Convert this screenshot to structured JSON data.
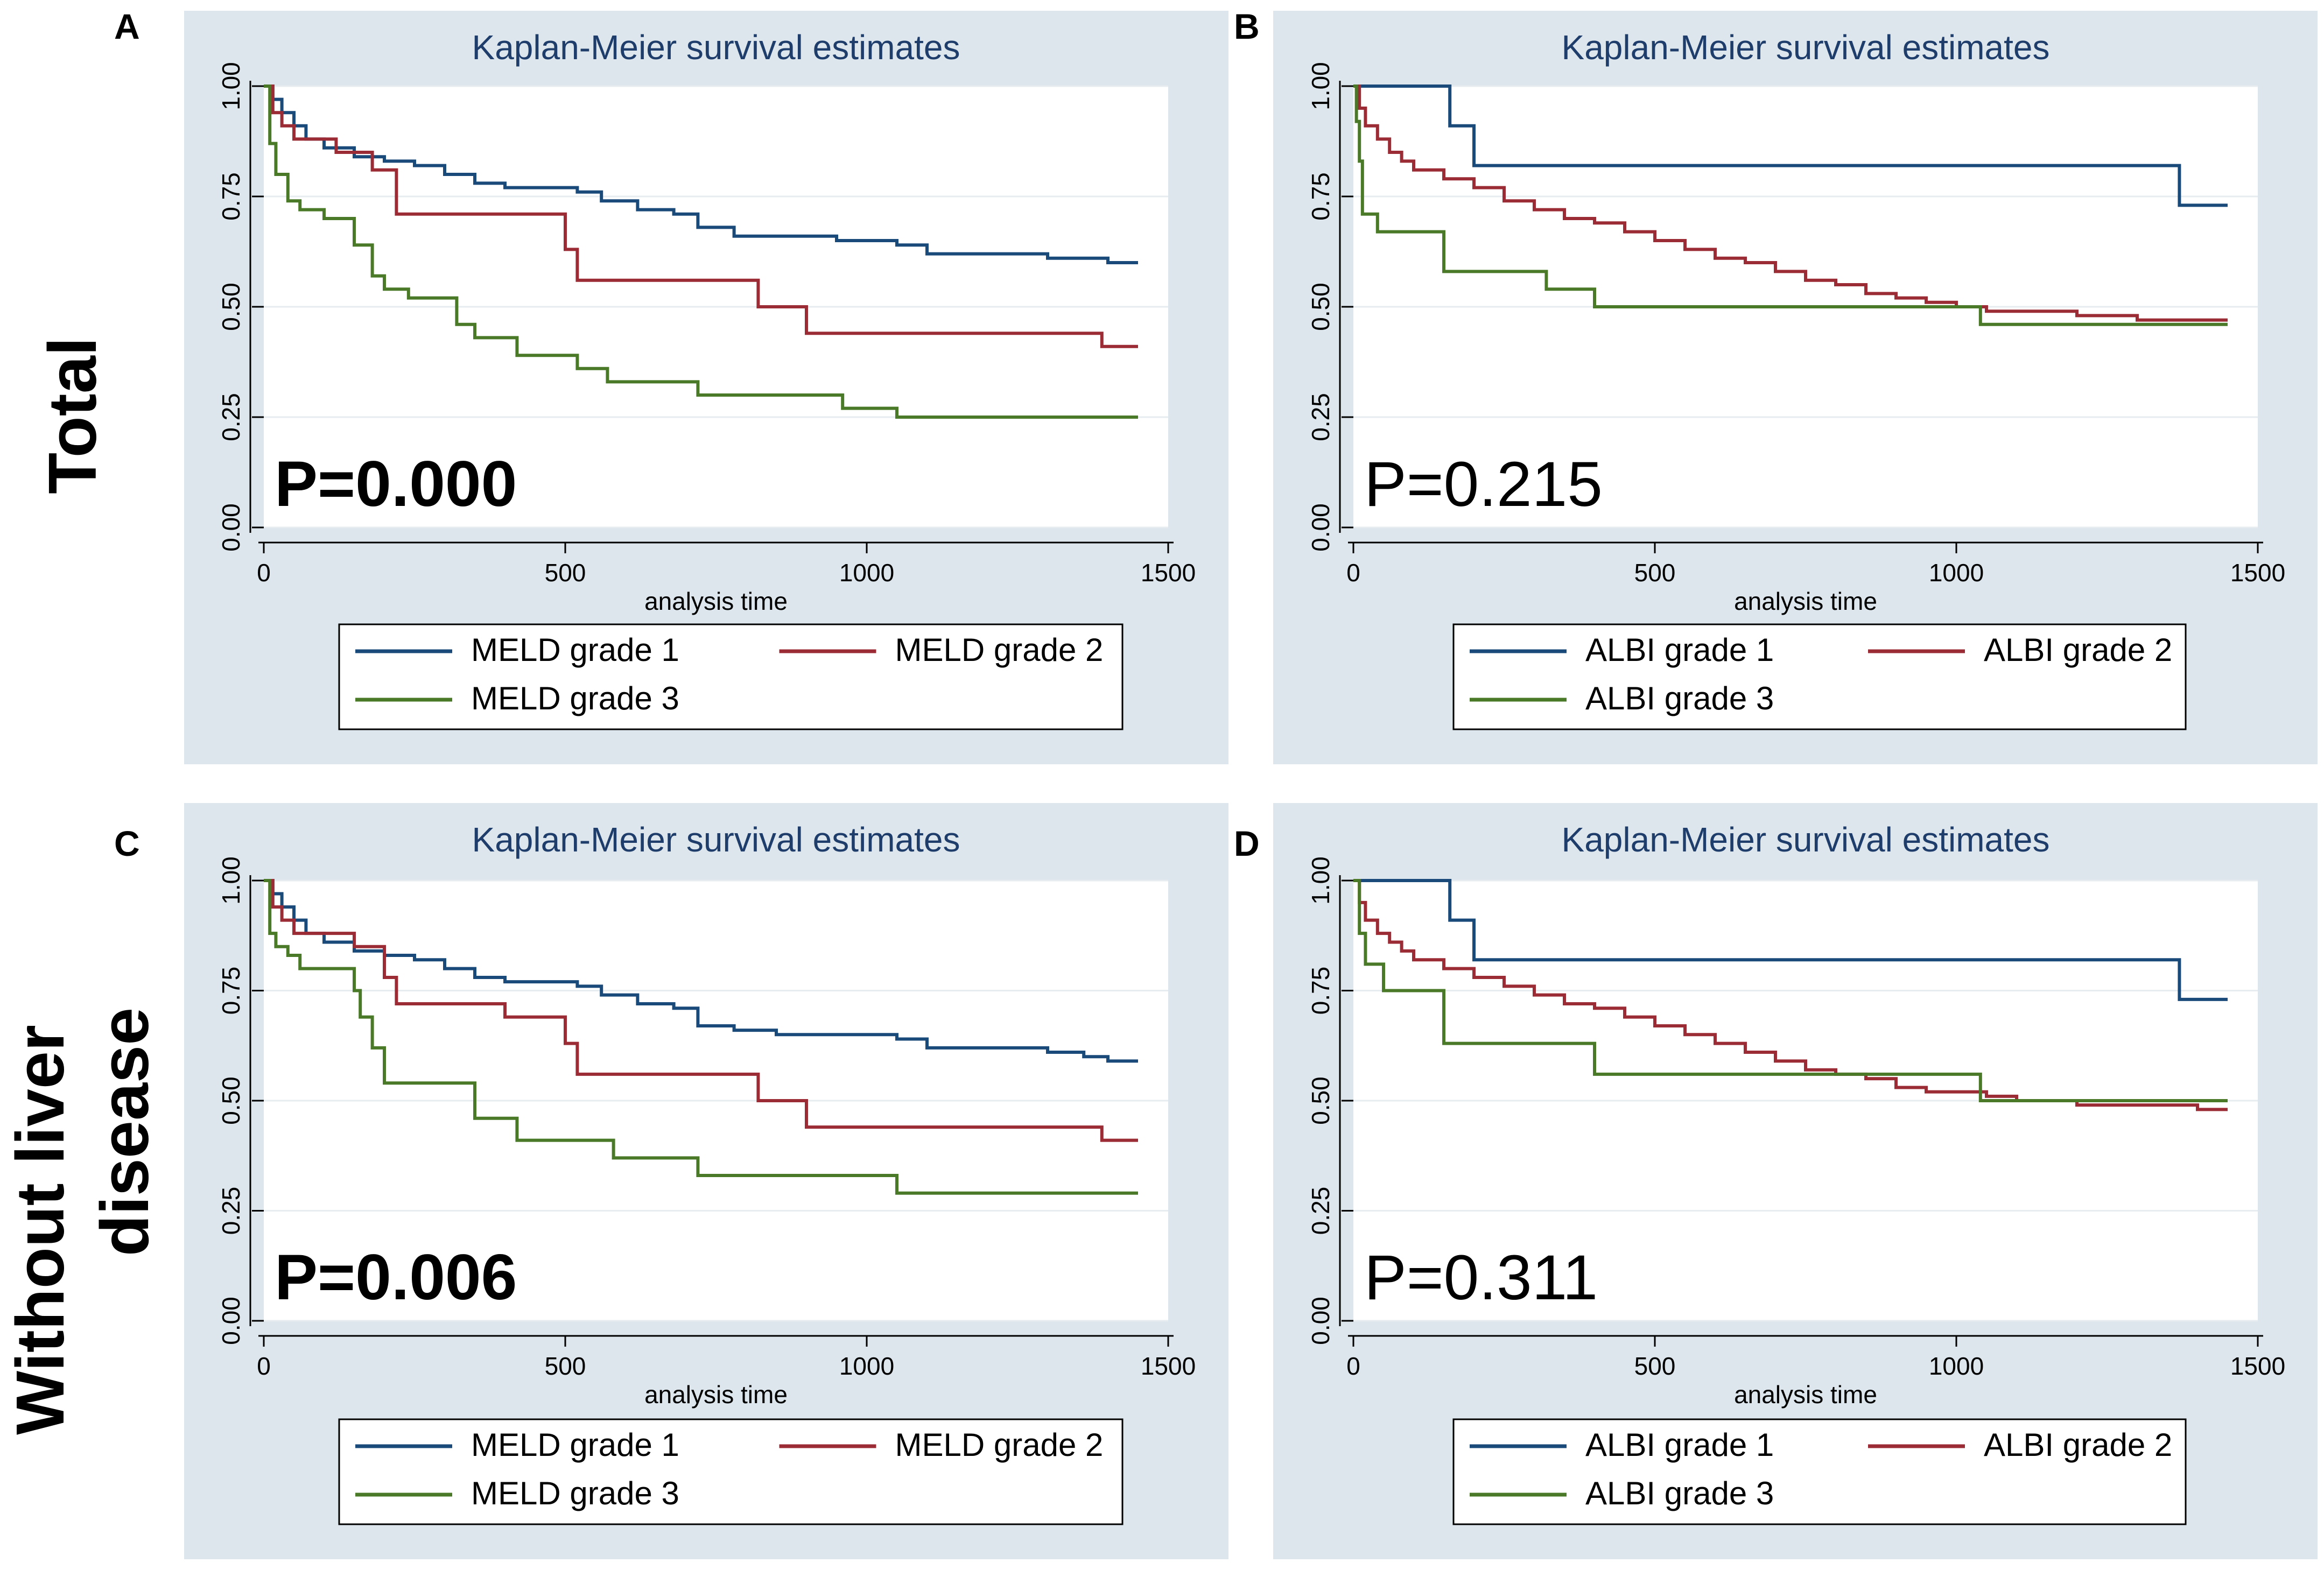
{
  "row_labels": {
    "top": "Total",
    "bottom_line1": "Without liver",
    "bottom_line2": "disease"
  },
  "colors": {
    "panel_bg": "#dce6ec",
    "plot_bg": "#ffffff",
    "grid": "#e6ecef",
    "axis": "#000000",
    "title": "#1f3d6b",
    "grade1": "#1a4a7a",
    "grade2": "#9b2b35",
    "grade3": "#4a7a28"
  },
  "chart_data": [
    {
      "panel_letter": "A",
      "type": "line",
      "title": "Kaplan-Meier survival estimates",
      "xlabel": "analysis time",
      "ylabel": "",
      "xlim": [
        0,
        1500
      ],
      "ylim": [
        0,
        1
      ],
      "xticks": [
        "0",
        "500",
        "1000",
        "1500"
      ],
      "yticks": [
        "0.00",
        "0.25",
        "0.50",
        "0.75",
        "1.00"
      ],
      "grid": true,
      "pvalue": "P=0.000",
      "pvalue_bold": true,
      "legend_position": "bottom",
      "series": [
        {
          "name": "MELD grade 1",
          "x": [
            0,
            15,
            30,
            50,
            70,
            100,
            150,
            200,
            250,
            300,
            350,
            400,
            450,
            520,
            560,
            620,
            680,
            720,
            780,
            850,
            950,
            1050,
            1100,
            1200,
            1300,
            1360,
            1400,
            1450
          ],
          "y": [
            1.0,
            0.97,
            0.94,
            0.91,
            0.88,
            0.86,
            0.84,
            0.83,
            0.82,
            0.8,
            0.78,
            0.77,
            0.77,
            0.76,
            0.74,
            0.72,
            0.71,
            0.68,
            0.66,
            0.66,
            0.65,
            0.64,
            0.62,
            0.62,
            0.61,
            0.61,
            0.6,
            0.6
          ]
        },
        {
          "name": "MELD grade 2",
          "x": [
            0,
            15,
            30,
            50,
            120,
            180,
            220,
            500,
            520,
            780,
            820,
            880,
            900,
            1390,
            1450
          ],
          "y": [
            1.0,
            0.94,
            0.91,
            0.88,
            0.85,
            0.81,
            0.71,
            0.63,
            0.56,
            0.56,
            0.5,
            0.5,
            0.44,
            0.41,
            0.41
          ]
        },
        {
          "name": "MELD grade 3",
          "x": [
            0,
            10,
            20,
            40,
            60,
            100,
            150,
            180,
            200,
            240,
            320,
            350,
            420,
            520,
            570,
            720,
            960,
            1050,
            1450
          ],
          "y": [
            1.0,
            0.87,
            0.8,
            0.74,
            0.72,
            0.7,
            0.64,
            0.57,
            0.54,
            0.52,
            0.46,
            0.43,
            0.39,
            0.36,
            0.33,
            0.3,
            0.27,
            0.25,
            0.25
          ]
        }
      ]
    },
    {
      "panel_letter": "B",
      "type": "line",
      "title": "Kaplan-Meier survival estimates",
      "xlabel": "analysis time",
      "ylabel": "",
      "xlim": [
        0,
        1500
      ],
      "ylim": [
        0,
        1
      ],
      "xticks": [
        "0",
        "500",
        "1000",
        "1500"
      ],
      "yticks": [
        "0.00",
        "0.25",
        "0.50",
        "0.75",
        "1.00"
      ],
      "grid": true,
      "pvalue": "P=0.215",
      "pvalue_bold": false,
      "legend_position": "bottom",
      "series": [
        {
          "name": "ALBI grade 1",
          "x": [
            0,
            160,
            200,
            1370,
            1450
          ],
          "y": [
            1.0,
            0.91,
            0.82,
            0.73,
            0.73
          ]
        },
        {
          "name": "ALBI grade 2",
          "x": [
            0,
            10,
            20,
            40,
            60,
            80,
            100,
            150,
            200,
            250,
            300,
            350,
            400,
            450,
            500,
            550,
            600,
            650,
            700,
            750,
            800,
            850,
            900,
            950,
            1000,
            1050,
            1100,
            1200,
            1300,
            1400,
            1450
          ],
          "y": [
            1.0,
            0.95,
            0.91,
            0.88,
            0.85,
            0.83,
            0.81,
            0.79,
            0.77,
            0.74,
            0.72,
            0.7,
            0.69,
            0.67,
            0.65,
            0.63,
            0.61,
            0.6,
            0.58,
            0.56,
            0.55,
            0.53,
            0.52,
            0.51,
            0.5,
            0.49,
            0.49,
            0.48,
            0.47,
            0.47,
            0.47
          ]
        },
        {
          "name": "ALBI grade 3",
          "x": [
            0,
            5,
            10,
            15,
            40,
            150,
            320,
            400,
            1040,
            1450
          ],
          "y": [
            1.0,
            0.92,
            0.83,
            0.71,
            0.67,
            0.58,
            0.54,
            0.5,
            0.46,
            0.46
          ]
        }
      ]
    },
    {
      "panel_letter": "C",
      "type": "line",
      "title": "Kaplan-Meier survival estimates",
      "xlabel": "analysis time",
      "ylabel": "",
      "xlim": [
        0,
        1500
      ],
      "ylim": [
        0,
        1
      ],
      "xticks": [
        "0",
        "500",
        "1000",
        "1500"
      ],
      "yticks": [
        "0.00",
        "0.25",
        "0.50",
        "0.75",
        "1.00"
      ],
      "grid": true,
      "pvalue": "P=0.006",
      "pvalue_bold": true,
      "legend_position": "bottom",
      "series": [
        {
          "name": "MELD grade 1",
          "x": [
            0,
            15,
            30,
            50,
            70,
            100,
            150,
            200,
            250,
            300,
            350,
            400,
            450,
            520,
            560,
            620,
            680,
            720,
            780,
            850,
            950,
            1050,
            1100,
            1200,
            1300,
            1360,
            1400,
            1450
          ],
          "y": [
            1.0,
            0.97,
            0.94,
            0.91,
            0.88,
            0.86,
            0.84,
            0.83,
            0.82,
            0.8,
            0.78,
            0.77,
            0.77,
            0.76,
            0.74,
            0.72,
            0.71,
            0.67,
            0.66,
            0.65,
            0.65,
            0.64,
            0.62,
            0.62,
            0.61,
            0.6,
            0.59,
            0.59
          ]
        },
        {
          "name": "MELD grade 2",
          "x": [
            0,
            15,
            30,
            50,
            150,
            200,
            220,
            400,
            500,
            520,
            780,
            820,
            880,
            900,
            1390,
            1450
          ],
          "y": [
            1.0,
            0.94,
            0.91,
            0.88,
            0.85,
            0.78,
            0.72,
            0.69,
            0.63,
            0.56,
            0.56,
            0.5,
            0.5,
            0.44,
            0.41,
            0.41
          ]
        },
        {
          "name": "MELD grade 3",
          "x": [
            0,
            10,
            20,
            40,
            60,
            150,
            160,
            180,
            200,
            300,
            350,
            420,
            580,
            720,
            1050,
            1450
          ],
          "y": [
            1.0,
            0.88,
            0.85,
            0.83,
            0.8,
            0.75,
            0.69,
            0.62,
            0.54,
            0.54,
            0.46,
            0.41,
            0.37,
            0.33,
            0.29,
            0.29
          ]
        }
      ]
    },
    {
      "panel_letter": "D",
      "type": "line",
      "title": "Kaplan-Meier survival estimates",
      "xlabel": "analysis time",
      "ylabel": "",
      "xlim": [
        0,
        1500
      ],
      "ylim": [
        0,
        1
      ],
      "xticks": [
        "0",
        "500",
        "1000",
        "1500"
      ],
      "yticks": [
        "0.00",
        "0.25",
        "0.50",
        "0.75",
        "1.00"
      ],
      "grid": true,
      "pvalue": "P=0.311",
      "pvalue_bold": false,
      "legend_position": "bottom",
      "series": [
        {
          "name": "ALBI grade 1",
          "x": [
            0,
            160,
            200,
            1370,
            1450
          ],
          "y": [
            1.0,
            0.91,
            0.82,
            0.73,
            0.73
          ]
        },
        {
          "name": "ALBI grade 2",
          "x": [
            0,
            10,
            20,
            40,
            60,
            80,
            100,
            150,
            200,
            250,
            300,
            350,
            400,
            450,
            500,
            550,
            600,
            650,
            700,
            750,
            800,
            850,
            900,
            950,
            1000,
            1050,
            1100,
            1200,
            1300,
            1400,
            1450
          ],
          "y": [
            1.0,
            0.95,
            0.91,
            0.88,
            0.86,
            0.84,
            0.82,
            0.8,
            0.78,
            0.76,
            0.74,
            0.72,
            0.71,
            0.69,
            0.67,
            0.65,
            0.63,
            0.61,
            0.59,
            0.57,
            0.56,
            0.55,
            0.53,
            0.52,
            0.52,
            0.51,
            0.5,
            0.49,
            0.49,
            0.48,
            0.48
          ]
        },
        {
          "name": "ALBI grade 3",
          "x": [
            0,
            10,
            20,
            50,
            150,
            400,
            1040,
            1450
          ],
          "y": [
            1.0,
            0.88,
            0.81,
            0.75,
            0.63,
            0.56,
            0.5,
            0.5
          ]
        }
      ]
    }
  ]
}
